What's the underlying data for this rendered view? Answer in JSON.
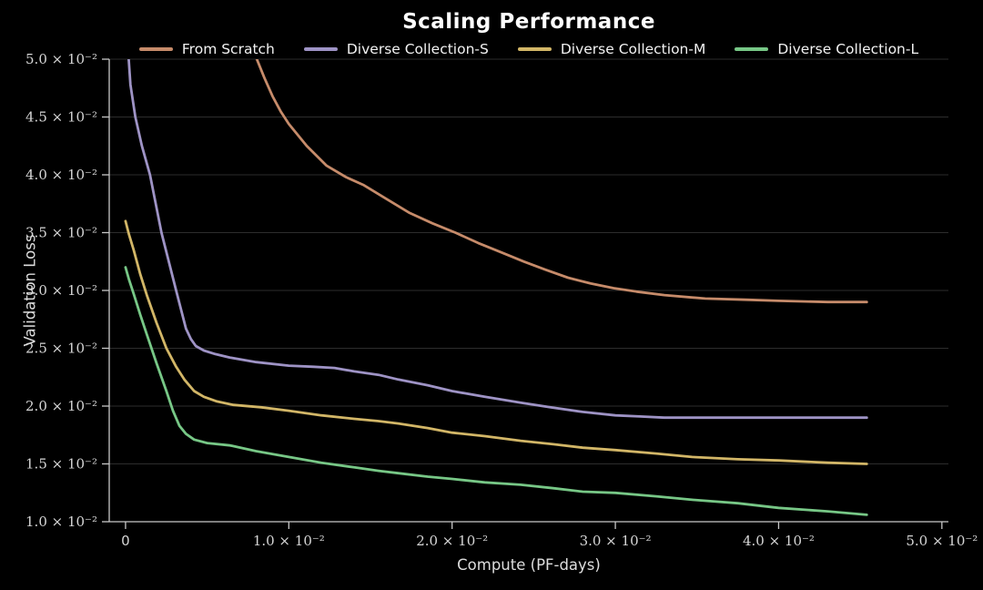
{
  "colors": {
    "background": "#000000",
    "grid": "#2d2d2d",
    "axis": "#c8c8c8",
    "tick_label": "#d6d6d6",
    "title": "#ffffff",
    "axis_label": "#dddddd",
    "legend_text": "#f2f2f2"
  },
  "chart_data": {
    "type": "line",
    "title": "Scaling Performance",
    "xlabel": "Compute (PF-days)",
    "ylabel": "Validation Loss",
    "xlim": [
      -0.001,
      0.0504
    ],
    "ylim": [
      0.01,
      0.05
    ],
    "grid": "horizontal-only",
    "legend_position": "top-center",
    "x_ticks": [
      {
        "value": 0,
        "label": "0"
      },
      {
        "value": 0.01,
        "label": "1.0 × 10⁻²"
      },
      {
        "value": 0.02,
        "label": "2.0 × 10⁻²"
      },
      {
        "value": 0.03,
        "label": "3.0 × 10⁻²"
      },
      {
        "value": 0.04,
        "label": "4.0 × 10⁻²"
      },
      {
        "value": 0.05,
        "label": "5.0 × 10⁻²"
      }
    ],
    "y_ticks": [
      {
        "value": 0.01,
        "label": "1.0 × 10⁻²"
      },
      {
        "value": 0.015,
        "label": "1.5 × 10⁻²"
      },
      {
        "value": 0.02,
        "label": "2.0 × 10⁻²"
      },
      {
        "value": 0.025,
        "label": "2.5 × 10⁻²"
      },
      {
        "value": 0.03,
        "label": "3.0 × 10⁻²"
      },
      {
        "value": 0.035,
        "label": "3.5 × 10⁻²"
      },
      {
        "value": 0.04,
        "label": "4.0 × 10⁻²"
      },
      {
        "value": 0.045,
        "label": "4.5 × 10⁻²"
      },
      {
        "value": 0.05,
        "label": "5.0 × 10⁻²"
      }
    ],
    "series": [
      {
        "name": "From Scratch",
        "color": "#c68b6a",
        "points": [
          [
            0.0075,
            0.052
          ],
          [
            0.0079,
            0.0505
          ],
          [
            0.0085,
            0.0484
          ],
          [
            0.009,
            0.0468
          ],
          [
            0.0095,
            0.0455
          ],
          [
            0.01,
            0.0444
          ],
          [
            0.0111,
            0.0425
          ],
          [
            0.0123,
            0.0408
          ],
          [
            0.0135,
            0.0398
          ],
          [
            0.0146,
            0.0391
          ],
          [
            0.016,
            0.0379
          ],
          [
            0.0174,
            0.0367
          ],
          [
            0.0188,
            0.0358
          ],
          [
            0.0202,
            0.035
          ],
          [
            0.0216,
            0.0341
          ],
          [
            0.023,
            0.0333
          ],
          [
            0.0244,
            0.0325
          ],
          [
            0.0257,
            0.0318
          ],
          [
            0.0271,
            0.0311
          ],
          [
            0.0285,
            0.0306
          ],
          [
            0.0299,
            0.0302
          ],
          [
            0.0313,
            0.0299
          ],
          [
            0.033,
            0.0296
          ],
          [
            0.0355,
            0.0293
          ],
          [
            0.038,
            0.0292
          ],
          [
            0.04,
            0.0291
          ],
          [
            0.043,
            0.029
          ],
          [
            0.0454,
            0.029
          ]
        ]
      },
      {
        "name": "Diverse Collection-S",
        "color": "#9e93c5",
        "points": [
          [
            0.0001,
            0.052
          ],
          [
            0.0003,
            0.0478
          ],
          [
            0.0006,
            0.045
          ],
          [
            0.001,
            0.0425
          ],
          [
            0.0015,
            0.04
          ],
          [
            0.0022,
            0.035
          ],
          [
            0.0031,
            0.03
          ],
          [
            0.0037,
            0.0267
          ],
          [
            0.004,
            0.0258
          ],
          [
            0.0043,
            0.0252
          ],
          [
            0.0048,
            0.0248
          ],
          [
            0.0055,
            0.0245
          ],
          [
            0.0064,
            0.0242
          ],
          [
            0.008,
            0.0238
          ],
          [
            0.01,
            0.0235
          ],
          [
            0.0115,
            0.0234
          ],
          [
            0.0128,
            0.0233
          ],
          [
            0.014,
            0.023
          ],
          [
            0.0155,
            0.0227
          ],
          [
            0.0167,
            0.0223
          ],
          [
            0.0185,
            0.0218
          ],
          [
            0.02,
            0.0213
          ],
          [
            0.022,
            0.0208
          ],
          [
            0.0242,
            0.0203
          ],
          [
            0.026,
            0.0199
          ],
          [
            0.028,
            0.0195
          ],
          [
            0.03,
            0.0192
          ],
          [
            0.0315,
            0.0191
          ],
          [
            0.033,
            0.019
          ],
          [
            0.036,
            0.019
          ],
          [
            0.04,
            0.019
          ],
          [
            0.0454,
            0.019
          ]
        ]
      },
      {
        "name": "Diverse Collection-M",
        "color": "#d2b667",
        "points": [
          [
            0.0,
            0.036
          ],
          [
            0.0002,
            0.0349
          ],
          [
            0.0005,
            0.0335
          ],
          [
            0.0009,
            0.0314
          ],
          [
            0.0013,
            0.0296
          ],
          [
            0.0019,
            0.0272
          ],
          [
            0.0025,
            0.025
          ],
          [
            0.0031,
            0.0234
          ],
          [
            0.0036,
            0.0223
          ],
          [
            0.0042,
            0.0213
          ],
          [
            0.0048,
            0.0208
          ],
          [
            0.0056,
            0.0204
          ],
          [
            0.0066,
            0.0201
          ],
          [
            0.0083,
            0.0199
          ],
          [
            0.01,
            0.0196
          ],
          [
            0.012,
            0.0192
          ],
          [
            0.014,
            0.0189
          ],
          [
            0.0155,
            0.0187
          ],
          [
            0.0167,
            0.0185
          ],
          [
            0.0185,
            0.0181
          ],
          [
            0.02,
            0.0177
          ],
          [
            0.022,
            0.0174
          ],
          [
            0.0242,
            0.017
          ],
          [
            0.0262,
            0.0167
          ],
          [
            0.028,
            0.0164
          ],
          [
            0.03,
            0.0162
          ],
          [
            0.0325,
            0.0159
          ],
          [
            0.0347,
            0.0156
          ],
          [
            0.0375,
            0.0154
          ],
          [
            0.04,
            0.0153
          ],
          [
            0.043,
            0.0151
          ],
          [
            0.0454,
            0.015
          ]
        ]
      },
      {
        "name": "Diverse Collection-L",
        "color": "#77c786",
        "points": [
          [
            0.0,
            0.032
          ],
          [
            0.0002,
            0.031
          ],
          [
            0.0005,
            0.0297
          ],
          [
            0.0009,
            0.0279
          ],
          [
            0.0013,
            0.0262
          ],
          [
            0.0019,
            0.0237
          ],
          [
            0.0025,
            0.0213
          ],
          [
            0.0029,
            0.0196
          ],
          [
            0.0033,
            0.0183
          ],
          [
            0.0037,
            0.0176
          ],
          [
            0.0042,
            0.0171
          ],
          [
            0.005,
            0.0168
          ],
          [
            0.0064,
            0.0166
          ],
          [
            0.008,
            0.0161
          ],
          [
            0.01,
            0.0156
          ],
          [
            0.012,
            0.0151
          ],
          [
            0.014,
            0.0147
          ],
          [
            0.0155,
            0.0144
          ],
          [
            0.0167,
            0.0142
          ],
          [
            0.0185,
            0.0139
          ],
          [
            0.02,
            0.0137
          ],
          [
            0.022,
            0.0134
          ],
          [
            0.0242,
            0.0132
          ],
          [
            0.0262,
            0.0129
          ],
          [
            0.028,
            0.0126
          ],
          [
            0.03,
            0.0125
          ],
          [
            0.0325,
            0.0122
          ],
          [
            0.0347,
            0.0119
          ],
          [
            0.0375,
            0.0116
          ],
          [
            0.04,
            0.0112
          ],
          [
            0.043,
            0.0109
          ],
          [
            0.0454,
            0.0106
          ]
        ]
      }
    ]
  }
}
